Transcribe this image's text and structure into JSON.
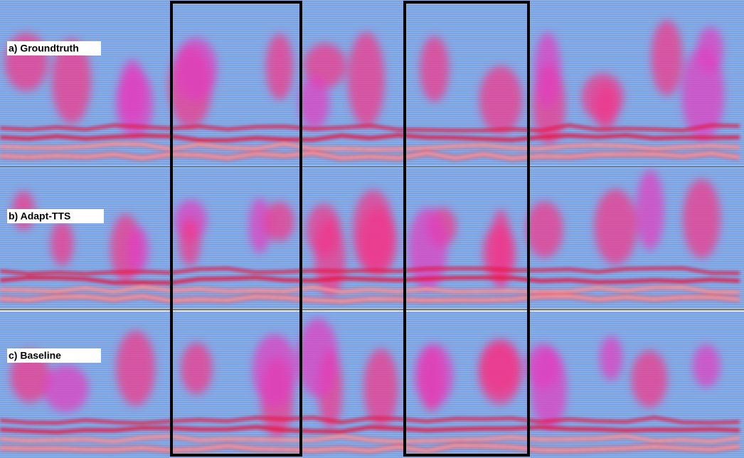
{
  "panels": [
    {
      "label": "a) Groundtruth"
    },
    {
      "label": "b) Adapt-TTS"
    },
    {
      "label": "c) Baseline"
    }
  ]
}
